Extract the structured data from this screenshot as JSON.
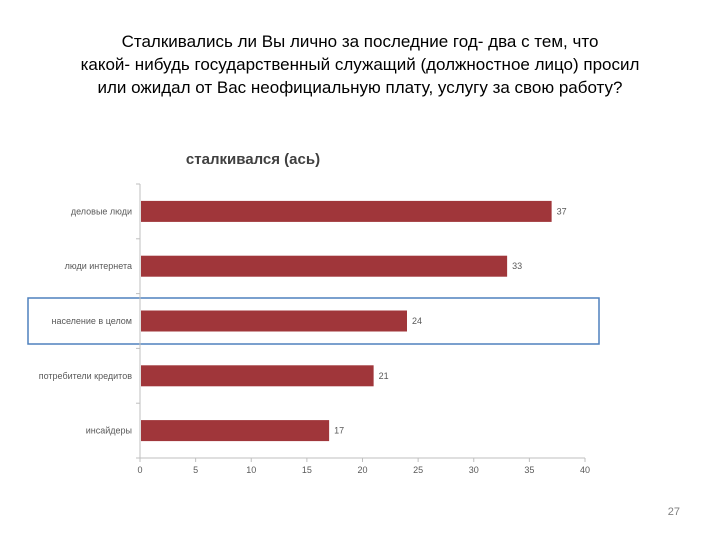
{
  "slide": {
    "title_lines": [
      "Сталкивались ли Вы лично за последние год- два с тем, что",
      "какой- нибудь государственный служащий (должностное лицо) просил",
      "или ожидал от Вас неофициальную плату, услугу за свою работу?"
    ],
    "page_number": "27"
  },
  "chart_data": {
    "type": "bar",
    "orientation": "horizontal",
    "title": "сталкивался (ась)",
    "categories": [
      "деловые люди",
      "люди интернета",
      "население в целом",
      "потребители кредитов",
      "инсайдеры"
    ],
    "values": [
      37,
      33,
      24,
      21,
      17
    ],
    "data_labels": [
      "37",
      "33",
      "24",
      "21",
      "17"
    ],
    "xlim": [
      0,
      40
    ],
    "x_ticks": [
      0,
      5,
      10,
      15,
      20,
      25,
      30,
      35,
      40
    ],
    "x_tick_labels": [
      "0",
      "5",
      "10",
      "15",
      "20",
      "25",
      "30",
      "35",
      "40"
    ],
    "grid": false,
    "legend": "none",
    "highlighted_category": "население в целом",
    "colors": {
      "bar": "#a0363a",
      "highlight_frame": "#4f81bd",
      "axis": "#bfbfbf",
      "tick_label": "#595959"
    }
  }
}
